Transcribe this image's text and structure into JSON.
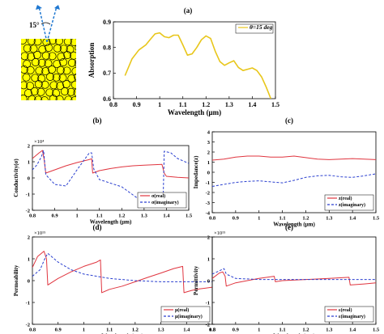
{
  "figure": {
    "inset_angle": "15°"
  },
  "chart_data": [
    {
      "id": "a",
      "panel_label": "(a)",
      "type": "line",
      "xlabel": "Wavelength (μm)",
      "ylabel": "Absorption",
      "xlim": [
        0.8,
        1.5
      ],
      "ylim": [
        0.6,
        0.9
      ],
      "xticks": [
        0.8,
        0.9,
        1,
        1.1,
        1.2,
        1.3,
        1.4,
        1.5
      ],
      "xtick_labels": [
        "0.8",
        "0.9",
        "1",
        "1.1",
        "1.2",
        "1.3",
        "1.4",
        "1.5"
      ],
      "yticks": [
        0.6,
        0.7,
        0.8,
        0.9
      ],
      "ytick_labels": [
        "0.6",
        "0.7",
        "0.8",
        "0.9"
      ],
      "legend_position": "top-right",
      "series": [
        {
          "name": "θ=15 deg",
          "color": "#e8c61a",
          "style": "solid",
          "x": [
            0.85,
            0.88,
            0.91,
            0.94,
            0.96,
            0.98,
            1.0,
            1.02,
            1.04,
            1.06,
            1.08,
            1.1,
            1.12,
            1.14,
            1.16,
            1.18,
            1.2,
            1.22,
            1.24,
            1.26,
            1.28,
            1.3,
            1.32,
            1.34,
            1.36,
            1.38,
            1.4,
            1.42,
            1.44,
            1.46,
            1.48
          ],
          "y": [
            0.69,
            0.755,
            0.79,
            0.81,
            0.832,
            0.853,
            0.857,
            0.842,
            0.838,
            0.848,
            0.848,
            0.81,
            0.77,
            0.775,
            0.8,
            0.83,
            0.845,
            0.835,
            0.785,
            0.745,
            0.73,
            0.74,
            0.748,
            0.722,
            0.71,
            0.715,
            0.72,
            0.71,
            0.685,
            0.645,
            0.6
          ]
        }
      ]
    },
    {
      "id": "b",
      "panel_label": "(b)",
      "type": "line",
      "scale_label": "×10⁴",
      "xlabel": "Wavelength (μm)",
      "ylabel": "Conductivity(σ)",
      "xlim": [
        0.8,
        1.5
      ],
      "ylim": [
        -2,
        2
      ],
      "xticks": [
        0.8,
        0.9,
        1,
        1.1,
        1.2,
        1.3,
        1.4,
        1.5
      ],
      "xtick_labels": [
        "0.8",
        "0.9",
        "1",
        "1.1",
        "1.2",
        "1.3",
        "1.4",
        "1.5"
      ],
      "yticks": [
        -2,
        -1,
        0,
        1,
        2
      ],
      "ytick_labels": [
        "-2",
        "-1",
        "0",
        "1",
        "2"
      ],
      "legend_position": "bottom-right",
      "series": [
        {
          "name": "σ(real)",
          "color": "#e0353f",
          "style": "solid",
          "x": [
            0.8,
            0.83,
            0.845,
            0.852,
            0.86,
            0.9,
            0.95,
            1.0,
            1.05,
            1.065,
            1.07,
            1.1,
            1.15,
            1.2,
            1.25,
            1.3,
            1.35,
            1.38,
            1.39,
            1.4,
            1.45,
            1.5
          ],
          "y": [
            1.2,
            1.55,
            1.7,
            1.2,
            0.3,
            0.5,
            0.75,
            0.95,
            1.12,
            1.18,
            0.3,
            0.45,
            0.58,
            0.68,
            0.75,
            0.79,
            0.82,
            0.84,
            0.3,
            0.1,
            0.04,
            0.0
          ]
        },
        {
          "name": "σ(imaginary)",
          "color": "#2a3fcf",
          "style": "dashed",
          "x": [
            0.8,
            0.82,
            0.84,
            0.85,
            0.86,
            0.9,
            0.95,
            1.0,
            1.055,
            1.065,
            1.075,
            1.1,
            1.2,
            1.3,
            1.385,
            1.39,
            1.42,
            1.45,
            1.5
          ],
          "y": [
            0.5,
            0.8,
            1.3,
            1.7,
            0.2,
            -0.4,
            -0.5,
            0.5,
            1.55,
            1.55,
            0.55,
            -0.1,
            -0.55,
            -1.55,
            -1.55,
            1.65,
            1.55,
            1.2,
            0.9
          ]
        }
      ]
    },
    {
      "id": "c",
      "panel_label": "(c)",
      "type": "line",
      "xlabel": "Wavelength (μm)",
      "ylabel": "Impedance(z)",
      "xlim": [
        0.8,
        1.5
      ],
      "ylim": [
        -4,
        4
      ],
      "xticks": [
        0.8,
        0.9,
        1,
        1.1,
        1.2,
        1.3,
        1.4,
        1.5
      ],
      "xtick_labels": [
        "0.8",
        "0.9",
        "1",
        "1.1",
        "1.2",
        "1.3",
        "1.4",
        "1.5"
      ],
      "yticks": [
        -4,
        -3,
        -2,
        -1,
        0,
        1,
        2,
        3,
        4
      ],
      "ytick_labels": [
        "-4",
        "-3",
        "-2",
        "-1",
        "0",
        "1",
        "2",
        "3",
        "4"
      ],
      "legend_position": "bottom-right",
      "series": [
        {
          "name": "z(real)",
          "color": "#e0353f",
          "style": "solid",
          "x": [
            0.8,
            0.85,
            0.9,
            0.95,
            1.0,
            1.05,
            1.1,
            1.15,
            1.2,
            1.25,
            1.3,
            1.35,
            1.4,
            1.45,
            1.5
          ],
          "y": [
            1.2,
            1.3,
            1.5,
            1.6,
            1.6,
            1.5,
            1.5,
            1.6,
            1.45,
            1.3,
            1.25,
            1.3,
            1.35,
            1.3,
            1.25
          ]
        },
        {
          "name": "z(imaginary)",
          "color": "#2a3fcf",
          "style": "dashed",
          "x": [
            0.8,
            0.85,
            0.9,
            0.95,
            1.0,
            1.05,
            1.1,
            1.15,
            1.2,
            1.25,
            1.3,
            1.35,
            1.4,
            1.45,
            1.5
          ],
          "y": [
            -1.4,
            -1.2,
            -1.0,
            -0.9,
            -0.85,
            -0.95,
            -1.05,
            -0.8,
            -0.5,
            -0.35,
            -0.3,
            -0.45,
            -0.5,
            -0.35,
            -0.15
          ]
        }
      ]
    },
    {
      "id": "d",
      "panel_label": "(d)",
      "type": "line",
      "scale_label": "×10¹⁵",
      "xlabel": "Wavelength (μm)",
      "ylabel": "Permeability",
      "xlim": [
        0.8,
        1.5
      ],
      "ylim": [
        -2,
        2
      ],
      "xticks": [
        0.8,
        0.9,
        1,
        1.1,
        1.2,
        1.3,
        1.4,
        1.5
      ],
      "xtick_labels": [
        "0.8",
        "0.9",
        "1",
        "1.1",
        "1.2",
        "1.3",
        "1.4",
        "1.5"
      ],
      "yticks": [
        -2,
        -1,
        0,
        1,
        2
      ],
      "ytick_labels": [
        "-2",
        "-1",
        "0",
        "1",
        "2"
      ],
      "legend_position": "bottom-right",
      "series": [
        {
          "name": "μ(real)",
          "color": "#e0353f",
          "style": "solid",
          "x": [
            0.8,
            0.82,
            0.845,
            0.855,
            0.86,
            0.9,
            0.95,
            1.0,
            1.05,
            1.065,
            1.07,
            1.1,
            1.15,
            1.2,
            1.25,
            1.3,
            1.35,
            1.385,
            1.39,
            1.42,
            1.45,
            1.5
          ],
          "y": [
            0.6,
            1.1,
            1.35,
            1.0,
            -0.2,
            0.1,
            0.4,
            0.65,
            0.85,
            0.95,
            -0.55,
            -0.4,
            -0.25,
            -0.05,
            0.15,
            0.35,
            0.55,
            0.65,
            -0.55,
            -0.45,
            -0.38,
            -0.3
          ]
        },
        {
          "name": "μ(imaginary)",
          "color": "#2a3fcf",
          "style": "dashed",
          "x": [
            0.8,
            0.83,
            0.85,
            0.86,
            0.9,
            0.95,
            1.0,
            1.1,
            1.2,
            1.3,
            1.4,
            1.5
          ],
          "y": [
            0.2,
            0.5,
            1.05,
            1.25,
            0.85,
            0.5,
            0.3,
            0.1,
            0.0,
            -0.05,
            -0.05,
            -0.05
          ]
        }
      ]
    },
    {
      "id": "e",
      "panel_label": "(e)",
      "type": "line",
      "scale_label": "×10¹⁵",
      "xlabel": "Wavelength (μm)",
      "ylabel": "Permittivity",
      "xlim": [
        0.8,
        1.5
      ],
      "ylim": [
        -2,
        2
      ],
      "xticks": [
        0.8,
        0.9,
        1,
        1.1,
        1.2,
        1.3,
        1.4,
        1.5
      ],
      "xtick_labels": [
        "0.8",
        "0.9",
        "1",
        "1.1",
        "1.2",
        "1.3",
        "1.4",
        "1.5"
      ],
      "yticks": [
        -2,
        -1,
        0,
        1,
        2
      ],
      "ytick_labels": [
        "-2",
        "-1",
        "0",
        "1",
        "2"
      ],
      "legend_position": "bottom-right",
      "series": [
        {
          "name": "ε(real)",
          "color": "#e0353f",
          "style": "solid",
          "x": [
            0.8,
            0.83,
            0.845,
            0.855,
            0.86,
            0.9,
            1.0,
            1.065,
            1.07,
            1.1,
            1.2,
            1.3,
            1.385,
            1.39,
            1.45,
            1.5
          ],
          "y": [
            0.1,
            0.35,
            0.4,
            0.2,
            -0.25,
            -0.1,
            0.1,
            0.2,
            -0.05,
            0.0,
            0.05,
            0.1,
            0.15,
            -0.2,
            -0.15,
            -0.1
          ]
        },
        {
          "name": "ε(imaginary)",
          "color": "#2a3fcf",
          "style": "dashed",
          "x": [
            0.8,
            0.83,
            0.85,
            0.86,
            0.9,
            1.0,
            1.1,
            1.2,
            1.3,
            1.4,
            1.5
          ],
          "y": [
            0.3,
            0.45,
            0.55,
            0.3,
            0.1,
            0.05,
            0.05,
            0.05,
            0.05,
            0.05,
            0.05
          ]
        }
      ]
    }
  ]
}
